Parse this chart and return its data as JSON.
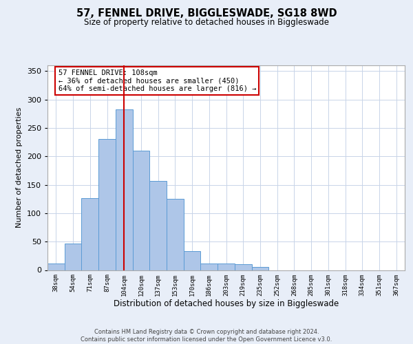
{
  "title": "57, FENNEL DRIVE, BIGGLESWADE, SG18 8WD",
  "subtitle": "Size of property relative to detached houses in Biggleswade",
  "xlabel": "Distribution of detached houses by size in Biggleswade",
  "ylabel": "Number of detached properties",
  "bin_labels": [
    "38sqm",
    "54sqm",
    "71sqm",
    "87sqm",
    "104sqm",
    "120sqm",
    "137sqm",
    "153sqm",
    "170sqm",
    "186sqm",
    "203sqm",
    "219sqm",
    "235sqm",
    "252sqm",
    "268sqm",
    "285sqm",
    "301sqm",
    "318sqm",
    "334sqm",
    "351sqm",
    "367sqm"
  ],
  "bin_values": [
    11,
    47,
    126,
    231,
    283,
    210,
    157,
    125,
    33,
    12,
    11,
    10,
    5,
    0,
    0,
    0,
    0,
    0,
    0,
    0,
    0
  ],
  "bar_color": "#aec6e8",
  "bar_edge_color": "#5b9bd5",
  "property_bin_index": 4,
  "vline_color": "#cc0000",
  "annotation_text": "57 FENNEL DRIVE: 108sqm\n← 36% of detached houses are smaller (450)\n64% of semi-detached houses are larger (816) →",
  "annotation_box_color": "#ffffff",
  "annotation_box_edge_color": "#cc0000",
  "ylim": [
    0,
    360
  ],
  "yticks": [
    0,
    50,
    100,
    150,
    200,
    250,
    300,
    350
  ],
  "footer_text": "Contains HM Land Registry data © Crown copyright and database right 2024.\nContains public sector information licensed under the Open Government Licence v3.0.",
  "background_color": "#e8eef8",
  "plot_bg_color": "#ffffff",
  "grid_color": "#c8d4e8"
}
